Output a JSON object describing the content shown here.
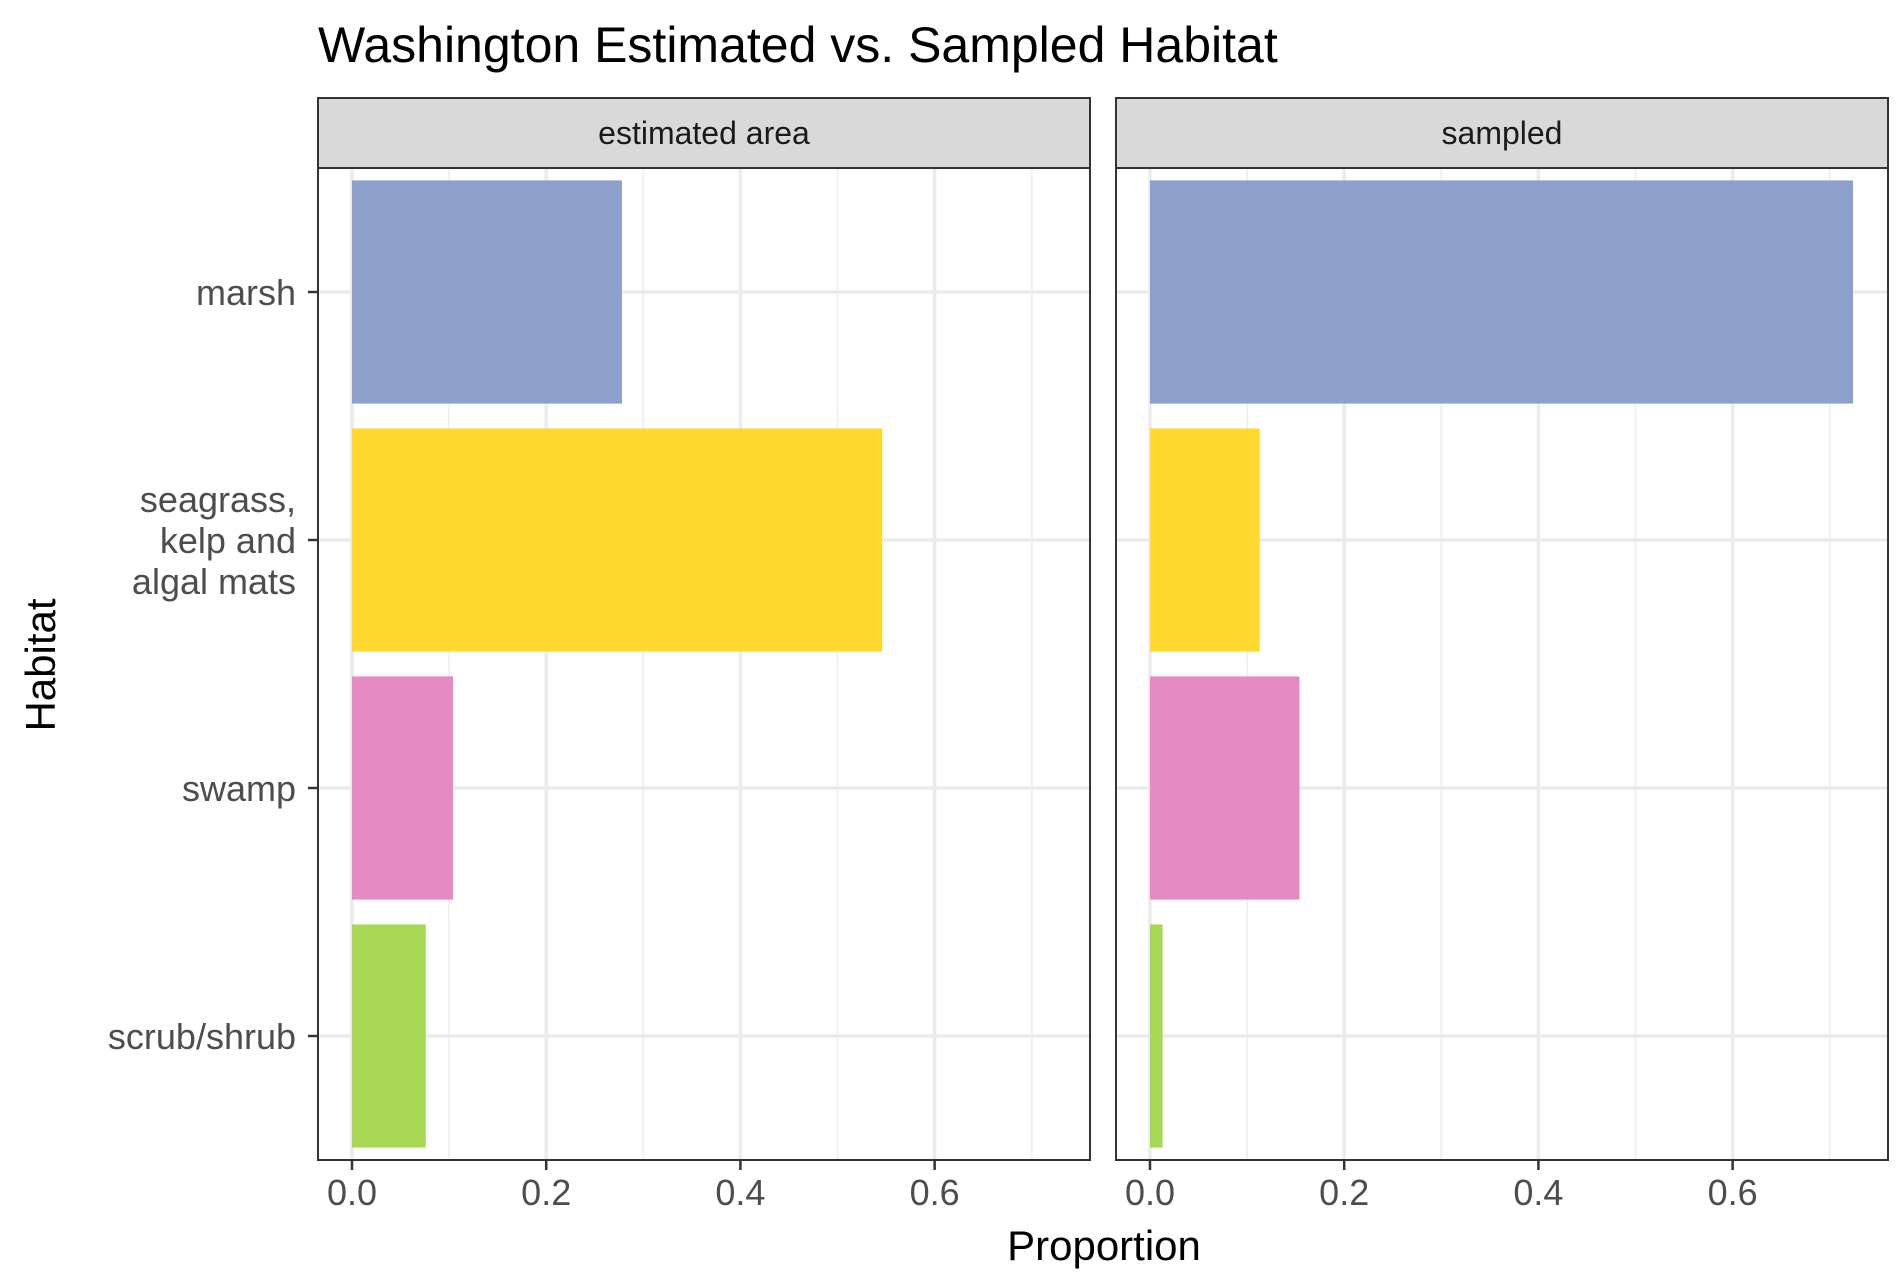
{
  "chart_data": {
    "type": "bar",
    "orientation": "horizontal",
    "title": "Washington Estimated vs. Sampled Habitat",
    "xlabel": "Proportion",
    "ylabel": "Habitat",
    "categories": [
      [
        "marsh"
      ],
      [
        "seagrass,",
        "kelp and",
        "algal mats"
      ],
      [
        "swamp"
      ],
      [
        "scrub/shrub"
      ]
    ],
    "colors": [
      "#8da0cb",
      "#ffd92f",
      "#e78ac3",
      "#a6d854"
    ],
    "xlim": [
      -0.035,
      0.76
    ],
    "xticks": [
      0.0,
      0.2,
      0.4,
      0.6
    ],
    "xtick_labels": [
      "0.0",
      "0.2",
      "0.4",
      "0.6"
    ],
    "grid": true,
    "facets": [
      {
        "label": "estimated area",
        "values": [
          0.278,
          0.546,
          0.104,
          0.076
        ]
      },
      {
        "label": "sampled",
        "values": [
          0.724,
          0.113,
          0.154,
          0.013
        ]
      }
    ]
  }
}
